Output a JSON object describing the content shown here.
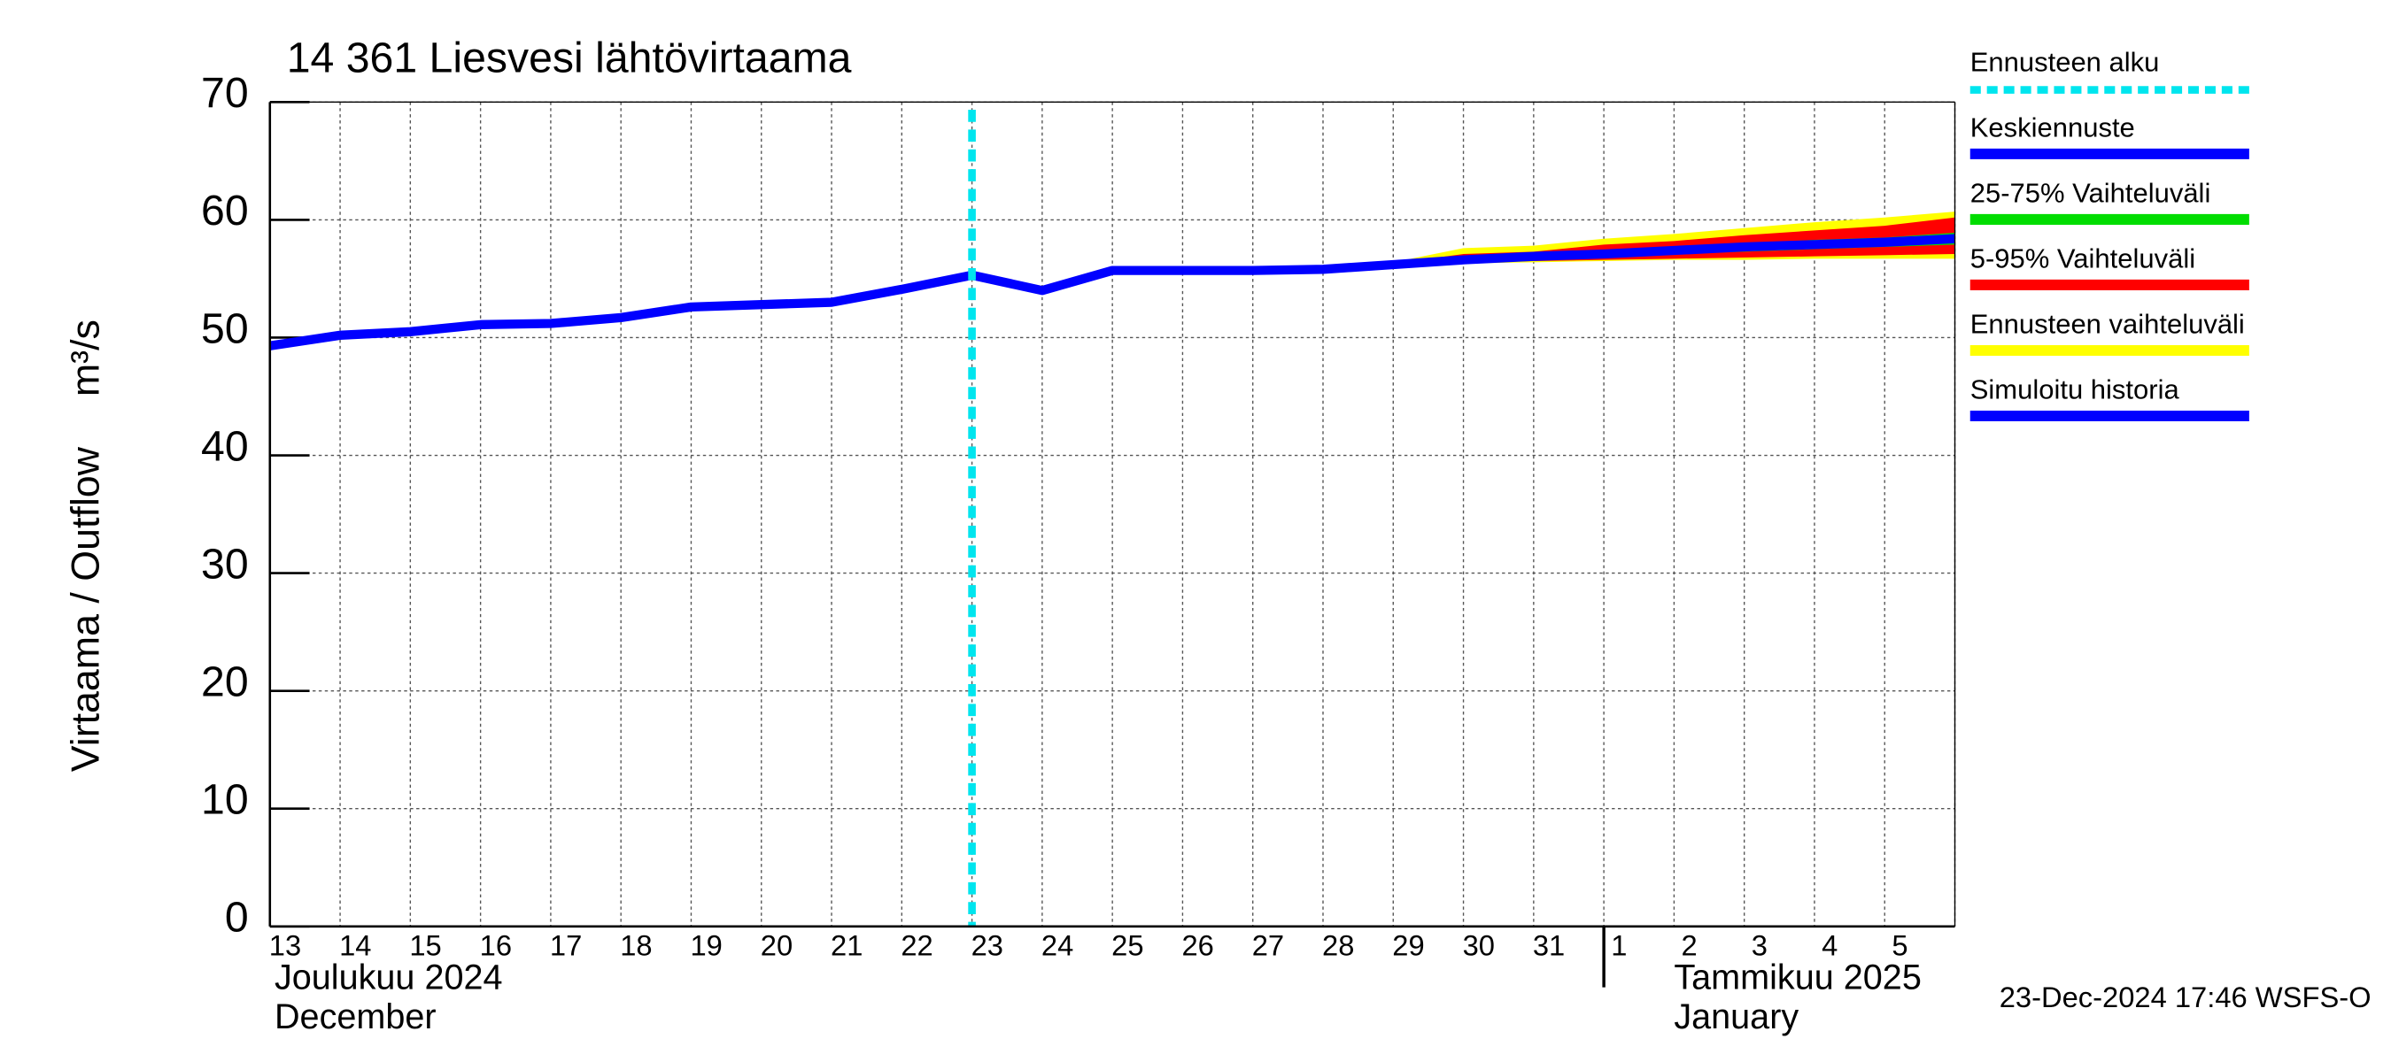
{
  "chart_data": {
    "type": "line",
    "title": "14 361 Liesvesi lähtövirtaama",
    "y_label": "Virtaama / Outflow",
    "y_unit": "m³/s",
    "categories": [
      "13",
      "14",
      "15",
      "16",
      "17",
      "18",
      "19",
      "20",
      "21",
      "22",
      "23",
      "24",
      "25",
      "26",
      "27",
      "28",
      "29",
      "30",
      "31",
      "1",
      "2",
      "3",
      "4",
      "5",
      null
    ],
    "month_labels": [
      {
        "index": 0,
        "lines": [
          "Joulukuu  2024",
          "December"
        ]
      },
      {
        "index": 19,
        "lines": [
          "Tammikuu  2025",
          "January"
        ]
      }
    ],
    "forecast_start": {
      "label": "Ennusteen alku",
      "x": 10,
      "color": "#00e5ee"
    },
    "series": [
      {
        "name": "Keskiennuste",
        "color": "#0000ff",
        "kind": "line",
        "values": [
          null,
          null,
          null,
          null,
          null,
          null,
          null,
          null,
          null,
          null,
          55.3,
          54.0,
          55.7,
          55.7,
          55.7,
          55.8,
          56.2,
          56.6,
          56.9,
          57.1,
          57.4,
          57.7,
          57.9,
          58.1,
          58.4
        ]
      },
      {
        "name": "25-75% Vaihteluväli",
        "color": "#00dd00",
        "kind": "band",
        "lower": [
          null,
          null,
          null,
          null,
          null,
          null,
          null,
          null,
          null,
          null,
          null,
          null,
          null,
          null,
          null,
          null,
          56.2,
          56.5,
          56.7,
          56.9,
          57.1,
          57.3,
          57.5,
          57.7,
          57.9
        ],
        "upper": [
          null,
          null,
          null,
          null,
          null,
          null,
          null,
          null,
          null,
          null,
          null,
          null,
          null,
          null,
          null,
          null,
          56.3,
          56.8,
          57.1,
          57.4,
          57.7,
          58.0,
          58.3,
          58.5,
          58.9
        ]
      },
      {
        "name": "5-95% Vaihteluväli",
        "color": "#ff0000",
        "kind": "band",
        "lower": [
          null,
          null,
          null,
          null,
          null,
          null,
          null,
          null,
          null,
          null,
          null,
          null,
          null,
          null,
          null,
          null,
          56.1,
          56.4,
          56.5,
          56.6,
          56.7,
          56.8,
          56.9,
          57.0,
          57.1
        ],
        "upper": [
          null,
          null,
          null,
          null,
          null,
          null,
          null,
          null,
          null,
          null,
          null,
          null,
          null,
          null,
          null,
          null,
          56.3,
          57.1,
          57.3,
          57.9,
          58.2,
          58.7,
          59.1,
          59.5,
          60.2
        ]
      },
      {
        "name": "Ennusteen vaihteluväli",
        "color": "#ffff00",
        "kind": "band",
        "lower": [
          null,
          null,
          null,
          null,
          null,
          null,
          null,
          null,
          null,
          null,
          null,
          null,
          null,
          null,
          null,
          null,
          56.1,
          56.3,
          56.4,
          56.5,
          56.6,
          56.6,
          56.7,
          56.7,
          56.7
        ],
        "upper": [
          null,
          null,
          null,
          null,
          null,
          null,
          null,
          null,
          null,
          null,
          null,
          null,
          null,
          null,
          null,
          null,
          56.4,
          57.6,
          57.8,
          58.4,
          58.8,
          59.3,
          59.8,
          60.2,
          60.7
        ]
      },
      {
        "name": "Simuloitu historia",
        "color": "#0000ff",
        "kind": "line",
        "values": [
          49.3,
          50.2,
          50.5,
          51.1,
          51.2,
          51.7,
          52.6,
          52.8,
          53.0,
          54.1,
          55.3,
          null,
          null,
          null,
          null,
          null,
          null,
          null,
          null,
          null,
          null,
          null,
          null,
          null,
          null
        ]
      }
    ],
    "ylim": [
      0,
      70
    ],
    "yticks": [
      0,
      10,
      20,
      30,
      40,
      50,
      60,
      70
    ],
    "grid": true,
    "footer": "23-Dec-2024 17:46 WSFS-O"
  }
}
